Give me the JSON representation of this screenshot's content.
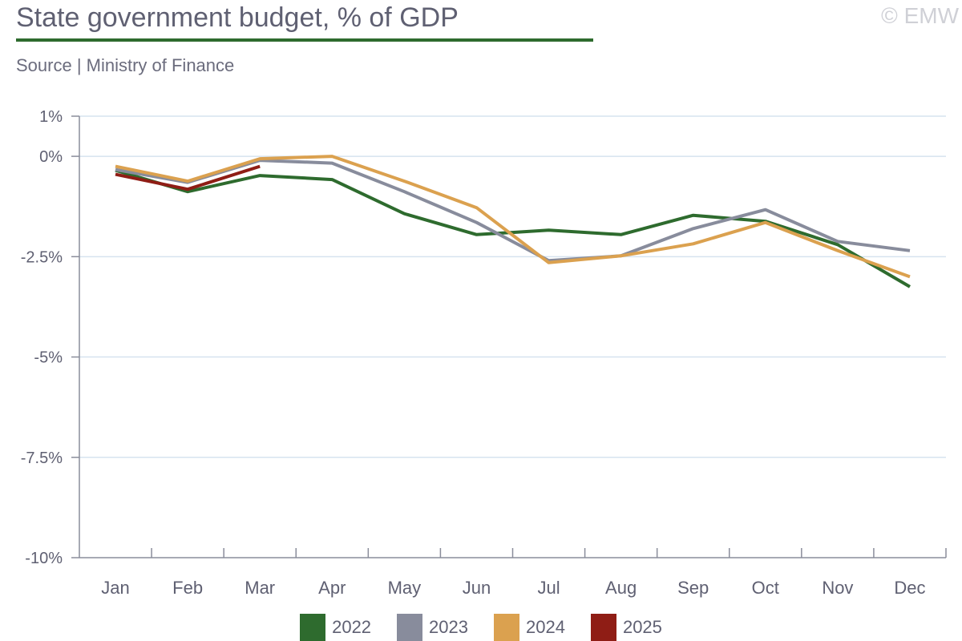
{
  "header": {
    "title": "State government budget, % of GDP",
    "source": "Source | Ministry of Finance",
    "copyright": "© EMW",
    "accent_color": "#2e6b2e"
  },
  "chart_data": {
    "type": "line",
    "title": "State government budget, % of GDP",
    "xlabel": "",
    "ylabel": "",
    "categories": [
      "Jan",
      "Feb",
      "Mar",
      "Apr",
      "May",
      "Jun",
      "Jul",
      "Aug",
      "Sep",
      "Oct",
      "Nov",
      "Dec"
    ],
    "ylim": [
      -10,
      1
    ],
    "yticks": [
      1,
      0,
      -2.5,
      -5,
      -7.5,
      -10
    ],
    "ytick_labels": [
      "1%",
      "0%",
      "-2.5%",
      "-5%",
      "-7.5%",
      "-10%"
    ],
    "grid": true,
    "legend_position": "bottom",
    "series": [
      {
        "name": "2022",
        "color": "#2e6b2e",
        "values": [
          -0.35,
          -0.88,
          -0.48,
          -0.58,
          -1.43,
          -1.95,
          -1.84,
          -1.95,
          -1.47,
          -1.62,
          -2.2,
          -3.25
        ]
      },
      {
        "name": "2023",
        "color": "#888c9c",
        "values": [
          -0.33,
          -0.65,
          -0.1,
          -0.17,
          -0.88,
          -1.65,
          -2.6,
          -2.48,
          -1.8,
          -1.33,
          -2.12,
          -2.35
        ]
      },
      {
        "name": "2024",
        "color": "#dba14f",
        "values": [
          -0.25,
          -0.62,
          -0.06,
          0.0,
          -0.62,
          -1.28,
          -2.65,
          -2.48,
          -2.18,
          -1.65,
          -2.35,
          -3.0
        ]
      },
      {
        "name": "2025",
        "color": "#8f1d15",
        "values": [
          -0.45,
          -0.82,
          -0.25,
          null,
          null,
          null,
          null,
          null,
          null,
          null,
          null,
          null
        ]
      }
    ]
  }
}
